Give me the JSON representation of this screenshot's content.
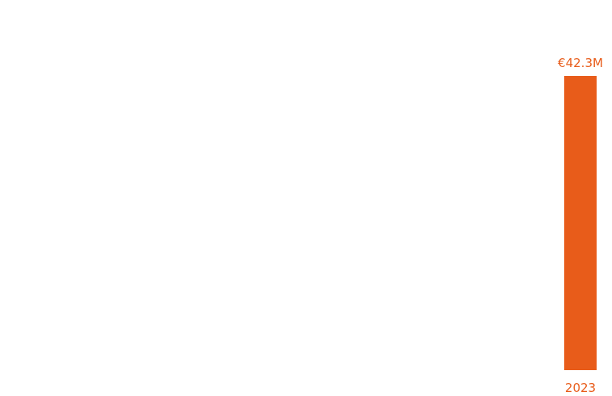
{
  "colors": {
    "accent": "#E85C1A"
  },
  "chart_data": {
    "type": "bar",
    "title": "",
    "xlabel": "",
    "ylabel": "",
    "categories": [
      "2023"
    ],
    "values": [
      42.3
    ],
    "value_labels": [
      "€42.3M"
    ],
    "unit": "€M",
    "grid": false
  }
}
